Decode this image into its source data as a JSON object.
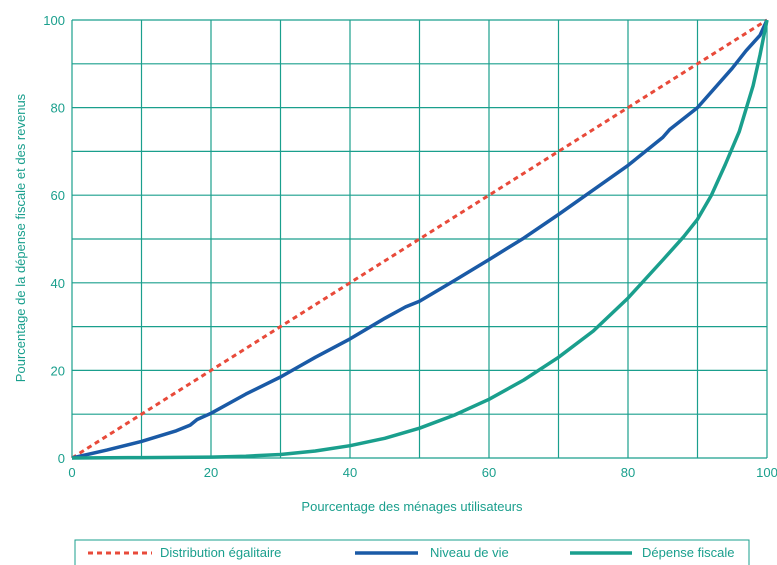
{
  "chart_data": {
    "type": "line",
    "title": "",
    "xlabel": "Pourcentage des ménages utilisateurs",
    "ylabel": "Pourcentage de la dépense fiscale et des revenus",
    "xlim": [
      0,
      100
    ],
    "ylim": [
      0,
      100
    ],
    "x_ticks": [
      "0",
      "20",
      "40",
      "60",
      "80",
      "100"
    ],
    "y_ticks": [
      "0",
      "20",
      "40",
      "60",
      "80",
      "100"
    ],
    "grid": true,
    "legend_position": "bottom",
    "colors": {
      "grid": "#1a9f8d",
      "egalitaire": "#e84a3a",
      "niveau": "#1a5aa6",
      "depense": "#1a9f8d"
    },
    "series": [
      {
        "name": "Distribution égalitaire",
        "style": "dotted",
        "x": [
          0,
          100
        ],
        "y": [
          0,
          100
        ]
      },
      {
        "name": "Niveau de vie",
        "style": "solid",
        "x": [
          0,
          5,
          10,
          15,
          17,
          18,
          20,
          25,
          30,
          32,
          35,
          40,
          45,
          48,
          50,
          55,
          60,
          65,
          70,
          75,
          80,
          85,
          86,
          90,
          95,
          97,
          99,
          100
        ],
        "y": [
          0,
          1.8,
          3.8,
          6.2,
          7.5,
          8.8,
          10.2,
          14.6,
          18.5,
          20.3,
          23.0,
          27.2,
          31.9,
          34.5,
          35.8,
          40.5,
          45.3,
          50.2,
          55.6,
          61.2,
          66.8,
          73.2,
          75.0,
          80.0,
          89.0,
          93.0,
          96.5,
          100
        ]
      },
      {
        "name": "Dépense fiscale",
        "style": "solid",
        "x": [
          0,
          10,
          20,
          25,
          30,
          35,
          40,
          45,
          50,
          55,
          60,
          65,
          70,
          75,
          80,
          85,
          88,
          90,
          92,
          94,
          96,
          98,
          99,
          100
        ],
        "y": [
          0,
          0.1,
          0.2,
          0.4,
          0.8,
          1.6,
          2.8,
          4.5,
          6.8,
          9.8,
          13.4,
          17.8,
          23.0,
          29.0,
          36.5,
          45.2,
          50.5,
          54.5,
          60.0,
          67.0,
          74.5,
          85.0,
          92.0,
          100
        ]
      }
    ]
  }
}
